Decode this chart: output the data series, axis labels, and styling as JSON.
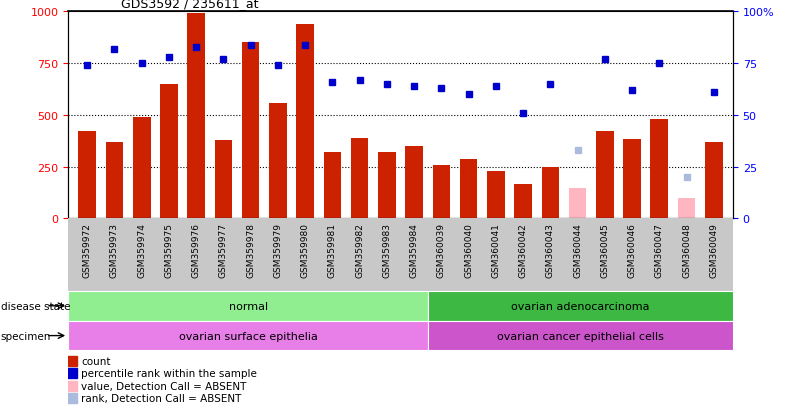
{
  "title": "GDS3592 / 235611_at",
  "samples": [
    "GSM359972",
    "GSM359973",
    "GSM359974",
    "GSM359975",
    "GSM359976",
    "GSM359977",
    "GSM359978",
    "GSM359979",
    "GSM359980",
    "GSM359981",
    "GSM359982",
    "GSM359983",
    "GSM359984",
    "GSM360039",
    "GSM360040",
    "GSM360041",
    "GSM360042",
    "GSM360043",
    "GSM360044",
    "GSM360045",
    "GSM360046",
    "GSM360047",
    "GSM360048",
    "GSM360049"
  ],
  "count_values": [
    420,
    370,
    490,
    650,
    990,
    380,
    850,
    560,
    940,
    320,
    390,
    320,
    350,
    260,
    285,
    230,
    165,
    250,
    145,
    420,
    385,
    480,
    100,
    370
  ],
  "count_absent": [
    false,
    false,
    false,
    false,
    false,
    false,
    false,
    false,
    false,
    false,
    false,
    false,
    false,
    false,
    false,
    false,
    false,
    false,
    true,
    false,
    false,
    false,
    true,
    false
  ],
  "rank_values": [
    74,
    82,
    75,
    78,
    83,
    77,
    84,
    74,
    84,
    66,
    67,
    65,
    64,
    63,
    60,
    64,
    51,
    65,
    33,
    77,
    62,
    75,
    20,
    61
  ],
  "rank_absent": [
    false,
    false,
    false,
    false,
    false,
    false,
    false,
    false,
    false,
    false,
    false,
    false,
    false,
    false,
    false,
    false,
    false,
    false,
    true,
    false,
    false,
    false,
    true,
    false
  ],
  "disease_groups": [
    {
      "label": "normal",
      "start": 0,
      "end": 13,
      "color": "#90EE90"
    },
    {
      "label": "ovarian adenocarcinoma",
      "start": 13,
      "end": 24,
      "color": "#3CB843"
    }
  ],
  "specimen_groups": [
    {
      "label": "ovarian surface epithelia",
      "start": 0,
      "end": 13,
      "color": "#E87EE8"
    },
    {
      "label": "ovarian cancer epithelial cells",
      "start": 13,
      "end": 24,
      "color": "#CC55CC"
    }
  ],
  "bar_color": "#CC2200",
  "bar_absent_color": "#FFB6C1",
  "dot_color": "#0000CC",
  "dot_absent_color": "#AABBDD",
  "ylim_left": [
    0,
    1000
  ],
  "ylim_right": [
    0,
    100
  ],
  "yticks_left": [
    0,
    250,
    500,
    750,
    1000
  ],
  "ytick_labels_left": [
    "0",
    "250",
    "500",
    "750",
    "1000"
  ],
  "yticks_right": [
    0,
    25,
    50,
    75,
    100
  ],
  "ytick_labels_right": [
    "0",
    "25",
    "50",
    "75",
    "100%"
  ],
  "grid_values": [
    250,
    500,
    750
  ],
  "legend_items": [
    {
      "label": "count",
      "color": "#CC2200"
    },
    {
      "label": "percentile rank within the sample",
      "color": "#0000CC"
    },
    {
      "label": "value, Detection Call = ABSENT",
      "color": "#FFB6C1"
    },
    {
      "label": "rank, Detection Call = ABSENT",
      "color": "#AABBDD"
    }
  ]
}
